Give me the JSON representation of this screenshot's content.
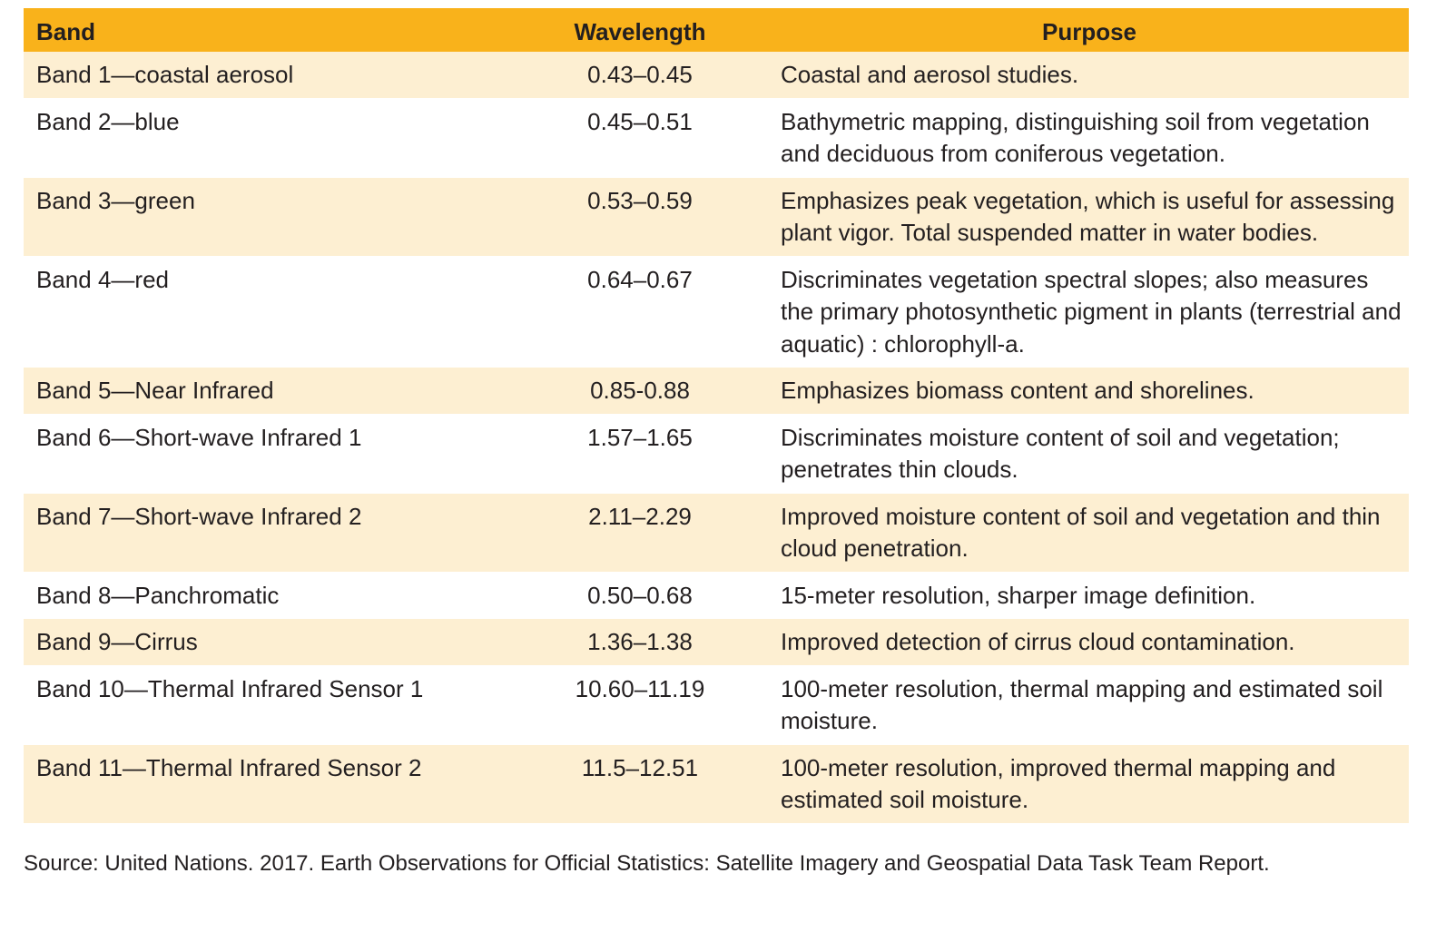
{
  "table": {
    "headers": {
      "band": "Band",
      "wavelength": "Wavelength",
      "purpose": "Purpose"
    },
    "rows": [
      {
        "band": "Band 1—coastal aerosol",
        "wavelength": "0.43–0.45",
        "purpose": "Coastal and aerosol studies."
      },
      {
        "band": "Band 2—blue",
        "wavelength": "0.45–0.51",
        "purpose": "Bathymetric mapping, distinguishing soil from vegetation and deciduous from coniferous vegetation."
      },
      {
        "band": "Band 3—green",
        "wavelength": "0.53–0.59",
        "purpose": "Emphasizes peak vegetation, which is useful for assessing plant vigor. Total suspended matter in water bodies."
      },
      {
        "band": "Band 4—red",
        "wavelength": "0.64–0.67",
        "purpose": "Discriminates vegetation spectral slopes; also measures the primary photosynthetic pigment in plants (terrestrial and aquatic) : chlorophyll-a."
      },
      {
        "band": "Band 5—Near Infrared",
        "wavelength": "0.85-0.88",
        "purpose": "Emphasizes biomass content and shorelines."
      },
      {
        "band": "Band 6—Short-wave Infrared 1",
        "wavelength": "1.57–1.65",
        "purpose": "Discriminates moisture content of soil and vegetation; penetrates thin clouds."
      },
      {
        "band": "Band 7—Short-wave Infrared 2",
        "wavelength": "2.11–2.29",
        "purpose": "Improved moisture content of soil and vegetation and thin cloud penetration."
      },
      {
        "band": "Band 8—Panchromatic",
        "wavelength": "0.50–0.68",
        "purpose": "15-meter resolution, sharper image definition."
      },
      {
        "band": "Band 9—Cirrus",
        "wavelength": "1.36–1.38",
        "purpose": "Improved detection of cirrus cloud contamination."
      },
      {
        "band": "Band 10—Thermal Infrared Sensor 1",
        "wavelength": "10.60–11.19",
        "purpose": "100-meter resolution, thermal mapping and estimated soil moisture."
      },
      {
        "band": "Band 11—Thermal Infrared Sensor 2",
        "wavelength": "11.5–12.51",
        "purpose": "100-meter resolution, improved thermal mapping and estimated soil moisture."
      }
    ]
  },
  "source": "Source: United Nations. 2017. Earth Observations for Official Statistics: Satellite Imagery and Geospatial Data Task Team Report.",
  "colors": {
    "header_bg": "#f9b21b",
    "stripe_bg": "#fdefd2",
    "text": "#231f20"
  }
}
